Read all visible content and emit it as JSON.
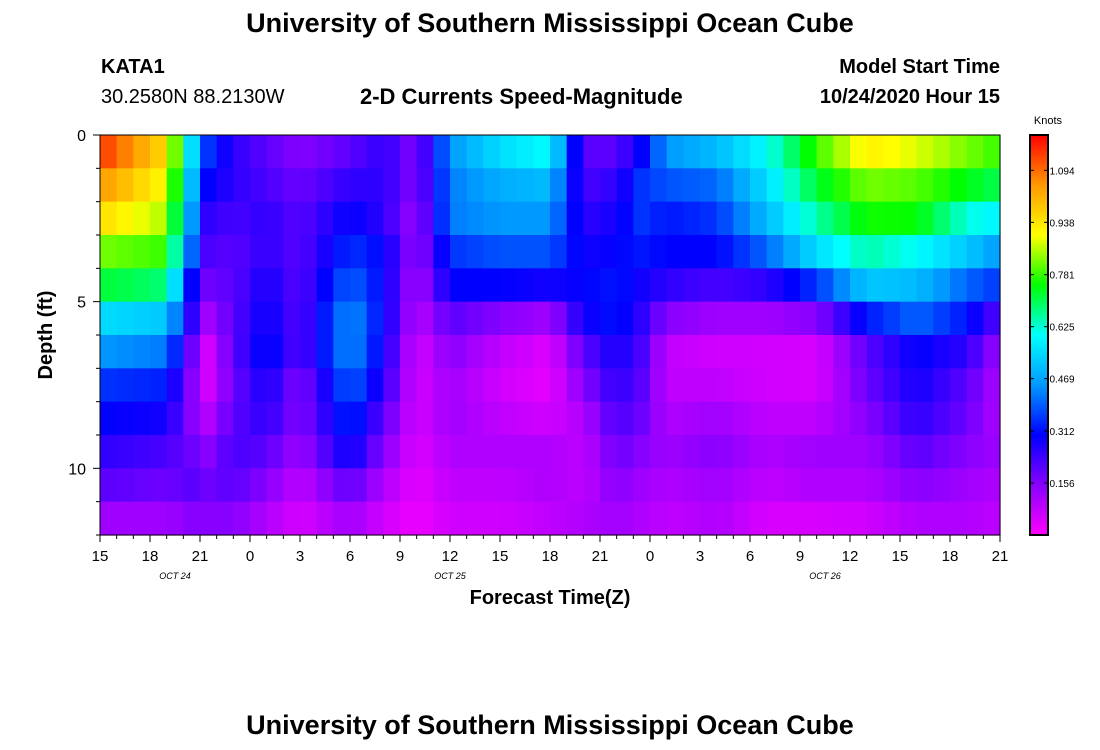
{
  "header": {
    "title_top": "University of Southern Mississippi Ocean Cube",
    "station": "KATA1",
    "coords": "30.2580N 88.2130W",
    "plot_title": "2-D Currents Speed-Magnitude",
    "model_label": "Model Start Time",
    "model_time": "10/24/2020 Hour 15"
  },
  "footer": {
    "title_bottom": "University of Southern Mississippi Ocean Cube"
  },
  "chart_data": {
    "type": "heatmap",
    "title": "2-D Currents Speed-Magnitude",
    "xlabel": "Forecast Time(Z)",
    "ylabel": "Depth (ft)",
    "colorbar_label": "Knots",
    "x_hours_range": [
      0,
      54
    ],
    "x_ticks": [
      "15",
      "18",
      "21",
      "0",
      "3",
      "6",
      "9",
      "12",
      "15",
      "18",
      "21",
      "0",
      "3",
      "6",
      "9",
      "12",
      "15",
      "18",
      "21"
    ],
    "date_labels": [
      {
        "text": "OCT 24",
        "hour": 4.5
      },
      {
        "text": "OCT 25",
        "hour": 21
      },
      {
        "text": "OCT 26",
        "hour": 43.5
      }
    ],
    "y_range_ft": [
      0,
      12
    ],
    "y_ticks": [
      "0",
      "5",
      "10"
    ],
    "y_tick_values": [
      0,
      5,
      10
    ],
    "colorbar_range": [
      0,
      1.2
    ],
    "colorbar_ticks": [
      "1.094",
      "0.938",
      "0.781",
      "0.625",
      "0.469",
      "0.312",
      "0.156"
    ],
    "colorbar_tick_values": [
      1.094,
      0.938,
      0.781,
      0.625,
      0.469,
      0.312,
      0.156
    ],
    "grid_hours_step": 1,
    "grid_depth_levels": 12,
    "profiles": [
      {
        "hour": 0,
        "values": [
          1.15,
          1.05,
          0.95,
          0.82,
          0.72,
          0.55,
          0.45,
          0.35,
          0.3,
          0.25,
          0.2,
          0.12
        ]
      },
      {
        "hour": 4,
        "values": [
          0.95,
          0.9,
          0.85,
          0.78,
          0.68,
          0.52,
          0.42,
          0.33,
          0.28,
          0.22,
          0.18,
          0.12
        ]
      },
      {
        "hour": 5.5,
        "values": [
          0.55,
          0.5,
          0.45,
          0.4,
          0.3,
          0.25,
          0.18,
          0.15,
          0.15,
          0.18,
          0.2,
          0.15
        ]
      },
      {
        "hour": 6.5,
        "values": [
          0.35,
          0.3,
          0.25,
          0.22,
          0.18,
          0.12,
          0.06,
          0.06,
          0.1,
          0.15,
          0.18,
          0.15
        ]
      },
      {
        "hour": 8,
        "values": [
          0.25,
          0.25,
          0.22,
          0.2,
          0.2,
          0.2,
          0.2,
          0.18,
          0.2,
          0.22,
          0.2,
          0.15
        ]
      },
      {
        "hour": 10,
        "values": [
          0.2,
          0.22,
          0.25,
          0.25,
          0.28,
          0.3,
          0.32,
          0.28,
          0.25,
          0.2,
          0.15,
          0.1
        ]
      },
      {
        "hour": 12,
        "values": [
          0.15,
          0.18,
          0.2,
          0.2,
          0.2,
          0.2,
          0.2,
          0.15,
          0.15,
          0.12,
          0.08,
          0.05
        ]
      },
      {
        "hour": 15,
        "values": [
          0.2,
          0.25,
          0.3,
          0.35,
          0.4,
          0.45,
          0.45,
          0.4,
          0.35,
          0.3,
          0.2,
          0.12
        ]
      },
      {
        "hour": 17,
        "values": [
          0.25,
          0.25,
          0.25,
          0.3,
          0.3,
          0.3,
          0.28,
          0.25,
          0.2,
          0.15,
          0.1,
          0.06
        ]
      },
      {
        "hour": 19,
        "values": [
          0.15,
          0.15,
          0.12,
          0.12,
          0.1,
          0.08,
          0.05,
          0.05,
          0.05,
          0.04,
          0.03,
          0.02
        ]
      },
      {
        "hour": 21,
        "values": [
          0.45,
          0.42,
          0.42,
          0.35,
          0.3,
          0.2,
          0.15,
          0.12,
          0.12,
          0.1,
          0.08,
          0.06
        ]
      },
      {
        "hour": 24,
        "values": [
          0.55,
          0.48,
          0.45,
          0.38,
          0.3,
          0.15,
          0.08,
          0.06,
          0.08,
          0.1,
          0.08,
          0.06
        ]
      },
      {
        "hour": 27,
        "values": [
          0.6,
          0.5,
          0.45,
          0.38,
          0.28,
          0.12,
          0.04,
          0.03,
          0.06,
          0.1,
          0.1,
          0.08
        ]
      },
      {
        "hour": 29,
        "values": [
          0.2,
          0.22,
          0.25,
          0.28,
          0.3,
          0.28,
          0.2,
          0.15,
          0.1,
          0.08,
          0.08,
          0.1
        ]
      },
      {
        "hour": 31,
        "values": [
          0.2,
          0.25,
          0.28,
          0.3,
          0.32,
          0.32,
          0.28,
          0.25,
          0.22,
          0.18,
          0.15,
          0.12
        ]
      },
      {
        "hour": 32.5,
        "values": [
          0.3,
          0.35,
          0.35,
          0.32,
          0.28,
          0.25,
          0.22,
          0.2,
          0.18,
          0.15,
          0.12,
          0.1
        ]
      },
      {
        "hour": 34,
        "values": [
          0.45,
          0.38,
          0.32,
          0.3,
          0.25,
          0.15,
          0.08,
          0.08,
          0.1,
          0.12,
          0.1,
          0.08
        ]
      },
      {
        "hour": 37,
        "values": [
          0.5,
          0.4,
          0.35,
          0.3,
          0.22,
          0.12,
          0.06,
          0.08,
          0.12,
          0.15,
          0.12,
          0.1
        ]
      },
      {
        "hour": 40,
        "values": [
          0.6,
          0.55,
          0.5,
          0.4,
          0.25,
          0.12,
          0.06,
          0.06,
          0.08,
          0.1,
          0.08,
          0.05
        ]
      },
      {
        "hour": 43,
        "values": [
          0.78,
          0.72,
          0.65,
          0.55,
          0.35,
          0.15,
          0.05,
          0.05,
          0.08,
          0.12,
          0.1,
          0.05
        ]
      },
      {
        "hour": 46,
        "values": [
          0.92,
          0.82,
          0.76,
          0.65,
          0.52,
          0.32,
          0.2,
          0.18,
          0.15,
          0.12,
          0.1,
          0.06
        ]
      },
      {
        "hour": 49,
        "values": [
          0.88,
          0.8,
          0.75,
          0.6,
          0.5,
          0.4,
          0.3,
          0.28,
          0.25,
          0.2,
          0.15,
          0.1
        ]
      },
      {
        "hour": 52,
        "values": [
          0.82,
          0.74,
          0.62,
          0.52,
          0.4,
          0.32,
          0.25,
          0.2,
          0.18,
          0.15,
          0.12,
          0.1
        ]
      },
      {
        "hour": 54,
        "values": [
          0.78,
          0.7,
          0.58,
          0.45,
          0.35,
          0.2,
          0.12,
          0.1,
          0.1,
          0.12,
          0.1,
          0.08
        ]
      }
    ]
  }
}
